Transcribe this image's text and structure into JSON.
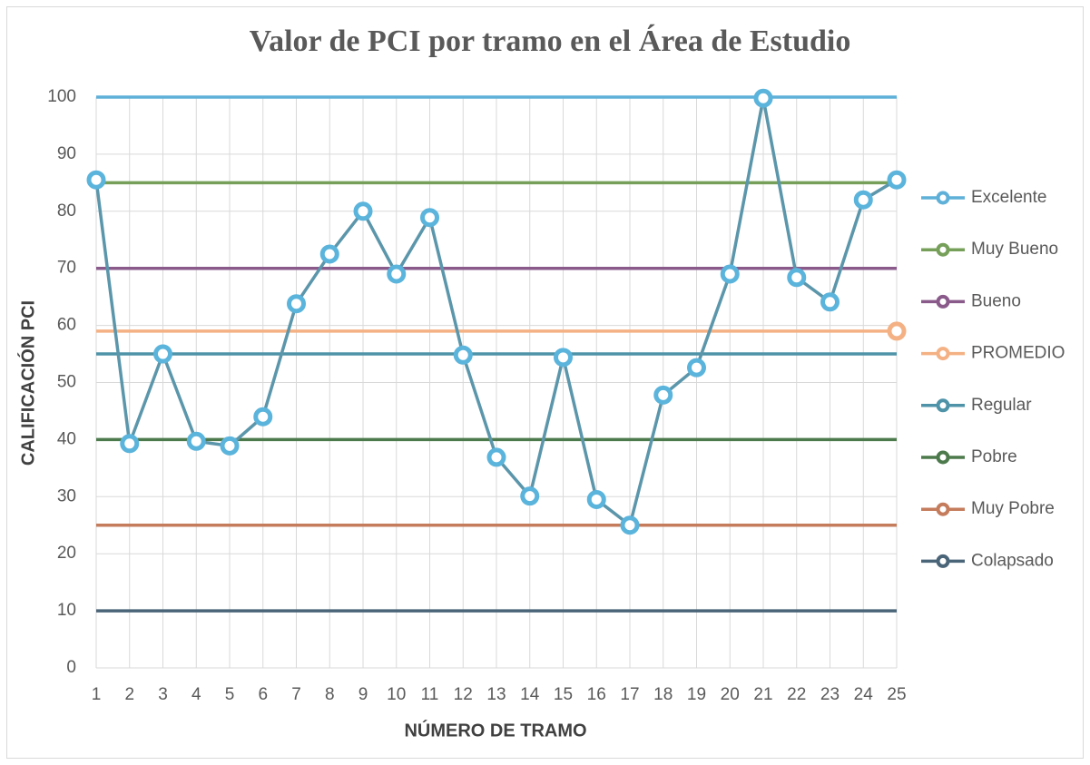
{
  "chart_data": {
    "type": "line",
    "title": "Valor de PCI por tramo en el Área de Estudio",
    "x_label": "NÚMERO DE TRAMO",
    "y_label": "CALIFICACIÓN PCI",
    "x": [
      1,
      2,
      3,
      4,
      5,
      6,
      7,
      8,
      9,
      10,
      11,
      12,
      13,
      14,
      15,
      16,
      17,
      18,
      19,
      20,
      21,
      22,
      23,
      24,
      25
    ],
    "xlim": [
      1,
      25
    ],
    "xticks": [
      1,
      2,
      3,
      4,
      5,
      6,
      7,
      8,
      9,
      10,
      11,
      12,
      13,
      14,
      15,
      16,
      17,
      18,
      19,
      20,
      21,
      22,
      23,
      24,
      25
    ],
    "ylim": [
      0,
      100
    ],
    "yticks": [
      0,
      10,
      20,
      30,
      40,
      50,
      60,
      70,
      80,
      90,
      100
    ],
    "grid": true,
    "legend": "right",
    "series": [
      {
        "name": "Excelente",
        "color": "#5fb0d8",
        "values": [
          100,
          100,
          100,
          100,
          100,
          100,
          100,
          100,
          100,
          100,
          100,
          100,
          100,
          100,
          100,
          100,
          100,
          100,
          100,
          100,
          100,
          100,
          100,
          100,
          100
        ]
      },
      {
        "name": "Muy Bueno",
        "color": "#76a05a",
        "values": [
          85,
          85,
          85,
          85,
          85,
          85,
          85,
          85,
          85,
          85,
          85,
          85,
          85,
          85,
          85,
          85,
          85,
          85,
          85,
          85,
          85,
          85,
          85,
          85,
          85
        ]
      },
      {
        "name": "Bueno",
        "color": "#8a5a8b",
        "values": [
          70,
          70,
          70,
          70,
          70,
          70,
          70,
          70,
          70,
          70,
          70,
          70,
          70,
          70,
          70,
          70,
          70,
          70,
          70,
          70,
          70,
          70,
          70,
          70,
          70
        ]
      },
      {
        "name": "PROMEDIO",
        "color": "#f4b184",
        "marker_last": true,
        "values": [
          59,
          59,
          59,
          59,
          59,
          59,
          59,
          59,
          59,
          59,
          59,
          59,
          59,
          59,
          59,
          59,
          59,
          59,
          59,
          59,
          59,
          59,
          59,
          59,
          59
        ]
      },
      {
        "name": "Regular",
        "color": "#4e93a8",
        "values": [
          55,
          55,
          55,
          55,
          55,
          55,
          55,
          55,
          55,
          55,
          55,
          55,
          55,
          55,
          55,
          55,
          55,
          55,
          55,
          55,
          55,
          55,
          55,
          55,
          55
        ]
      },
      {
        "name": "Pobre",
        "color": "#4d7a4c",
        "values": [
          40,
          40,
          40,
          40,
          40,
          40,
          40,
          40,
          40,
          40,
          40,
          40,
          40,
          40,
          40,
          40,
          40,
          40,
          40,
          40,
          40,
          40,
          40,
          40,
          40
        ]
      },
      {
        "name": "Muy Pobre",
        "color": "#c47c5c",
        "values": [
          25,
          25,
          25,
          25,
          25,
          25,
          25,
          25,
          25,
          25,
          25,
          25,
          25,
          25,
          25,
          25,
          25,
          25,
          25,
          25,
          25,
          25,
          25,
          25,
          25
        ]
      },
      {
        "name": "Colapsado",
        "color": "#4a6478",
        "values": [
          10,
          10,
          10,
          10,
          10,
          10,
          10,
          10,
          10,
          10,
          10,
          10,
          10,
          10,
          10,
          10,
          10,
          10,
          10,
          10,
          10,
          10,
          10,
          10,
          10
        ]
      },
      {
        "color": "#5b96ab",
        "marker_color": "#5ab4dc",
        "markers": true,
        "values": [
          85.5,
          39.3,
          55,
          39.7,
          38.9,
          44,
          63.8,
          72.5,
          80,
          69,
          78.9,
          54.8,
          36.9,
          30.1,
          54.4,
          29.5,
          25,
          47.8,
          52.6,
          69,
          99.8,
          68.4,
          64.1,
          82,
          85.5
        ]
      }
    ]
  }
}
